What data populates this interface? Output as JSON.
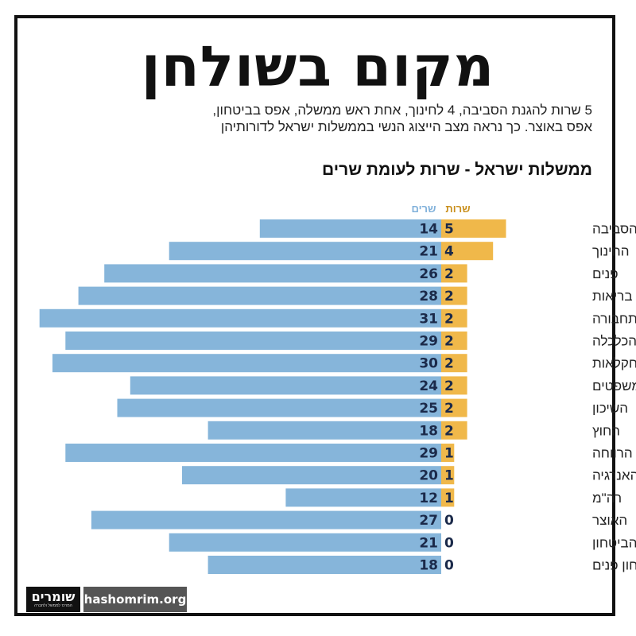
{
  "page": {
    "title": "מקום בשולחן",
    "subtitle_line1": "5 שרות להגנת הסביבה, 4 לחינוך, אחת ראש ממשלה, אפס בביטחון,",
    "subtitle_line2": "אפס באוצר. כך נראה מצב הייצוג הנשי בממשלות ישראל לדורותיהן",
    "logo_text": "שומרים",
    "logo_tagline": "המרכז לממשל ולחברה",
    "website": "hashomrim.org"
  },
  "chart_data": {
    "type": "bar",
    "title": "ממשלות ישראל - שרות לעומת שרים",
    "xlabel": "",
    "ylabel": "",
    "xlim": [
      0,
      31
    ],
    "categories": [
      "הגנת הסביבה",
      "החינוך",
      "פנים",
      "בריאות",
      "תחבורה",
      "הכלכלה",
      "חקלאות",
      "משפטים",
      "השיכון",
      "החוץ",
      "הרווחה",
      "האנרגיה",
      "רה\"מ",
      "האוצר",
      "הביטחון",
      "ביטחון פנים"
    ],
    "series": [
      {
        "name": "שרות",
        "color": "#F0B84A",
        "text_color": "#C98F1C",
        "values": [
          5,
          4,
          2,
          2,
          2,
          2,
          2,
          2,
          2,
          2,
          1,
          1,
          1,
          0,
          0,
          0
        ]
      },
      {
        "name": "שרים",
        "color": "#86B5DA",
        "text_color": "#7FB0DA",
        "values": [
          14,
          21,
          26,
          28,
          31,
          29,
          30,
          24,
          25,
          18,
          29,
          20,
          12,
          27,
          21,
          18
        ]
      }
    ],
    "value_label_color": "#1B2A4A",
    "grid": false,
    "legend": "top-center"
  }
}
